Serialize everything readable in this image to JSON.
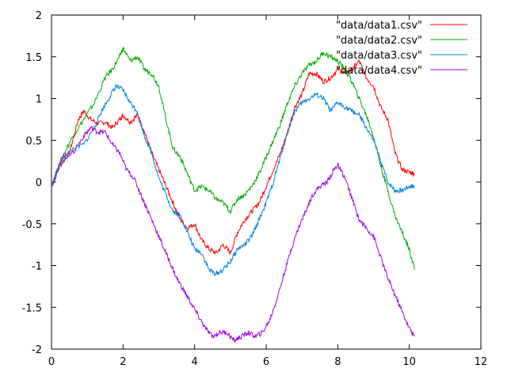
{
  "chart_data": {
    "type": "line",
    "title": "",
    "xlabel": "",
    "ylabel": "",
    "xlim": [
      0,
      12
    ],
    "ylim": [
      -2,
      2
    ],
    "x_ticks": [
      0,
      2,
      4,
      6,
      8,
      10,
      12
    ],
    "y_ticks": [
      -2,
      -1.5,
      -1,
      -0.5,
      0,
      0.5,
      1,
      1.5,
      2
    ],
    "x_tick_labels": [
      "0",
      "2",
      "4",
      "6",
      "8",
      "10",
      "12"
    ],
    "y_tick_labels": [
      "-2",
      "-1.5",
      "-1",
      "-0.5",
      "0",
      "0.5",
      "1",
      "1.5",
      "2"
    ],
    "grid": false,
    "legend_position": "top-right",
    "series": [
      {
        "name": "\"data/data1.csv\"",
        "color": "#ff0000",
        "x": [
          0,
          0.25,
          0.5,
          0.75,
          0.9,
          1.1,
          1.3,
          1.5,
          1.7,
          1.9,
          2.0,
          2.2,
          2.4,
          2.6,
          2.8,
          3.0,
          3.2,
          3.4,
          3.6,
          3.8,
          4.0,
          4.2,
          4.4,
          4.6,
          4.8,
          5.0,
          5.2,
          5.4,
          5.6,
          5.8,
          6.0,
          6.2,
          6.4,
          6.6,
          6.8,
          7.0,
          7.2,
          7.4,
          7.6,
          7.8,
          8.0,
          8.2,
          8.4,
          8.6,
          8.8,
          9.0,
          9.2,
          9.4,
          9.6,
          9.8,
          10.0,
          10.15
        ],
        "y": [
          -0.05,
          0.2,
          0.35,
          0.75,
          0.85,
          0.75,
          0.7,
          0.72,
          0.65,
          0.75,
          0.8,
          0.72,
          0.8,
          0.6,
          0.35,
          0.15,
          -0.05,
          -0.25,
          -0.45,
          -0.55,
          -0.5,
          -0.7,
          -0.8,
          -0.85,
          -0.75,
          -0.85,
          -0.6,
          -0.45,
          -0.35,
          -0.25,
          -0.05,
          0.15,
          0.35,
          0.6,
          0.9,
          1.05,
          1.3,
          1.3,
          1.2,
          1.25,
          1.35,
          1.3,
          1.35,
          1.45,
          1.25,
          1.15,
          0.9,
          0.75,
          0.35,
          0.15,
          0.12,
          0.1
        ]
      },
      {
        "name": "\"data/data2.csv\"",
        "color": "#00aa00",
        "x": [
          0,
          0.3,
          0.6,
          0.9,
          1.2,
          1.5,
          1.7,
          1.9,
          2.0,
          2.2,
          2.4,
          2.6,
          2.8,
          3.0,
          3.2,
          3.4,
          3.6,
          3.8,
          4.0,
          4.2,
          4.4,
          4.6,
          4.8,
          5.0,
          5.2,
          5.4,
          5.6,
          5.8,
          6.0,
          6.2,
          6.4,
          6.6,
          6.8,
          7.0,
          7.2,
          7.4,
          7.6,
          7.8,
          8.0,
          8.2,
          8.4,
          8.6,
          8.8,
          9.0,
          9.2,
          9.4,
          9.6,
          9.8,
          10.0,
          10.15
        ],
        "y": [
          -0.05,
          0.3,
          0.55,
          0.75,
          0.95,
          1.25,
          1.35,
          1.5,
          1.6,
          1.45,
          1.5,
          1.35,
          1.3,
          1.15,
          0.75,
          0.4,
          0.3,
          0.1,
          -0.1,
          -0.05,
          -0.1,
          -0.2,
          -0.25,
          -0.35,
          -0.2,
          -0.15,
          -0.05,
          0.1,
          0.3,
          0.5,
          0.7,
          0.95,
          1.15,
          1.3,
          1.4,
          1.45,
          1.55,
          1.5,
          1.45,
          1.35,
          1.2,
          1.0,
          0.8,
          0.55,
          0.2,
          -0.1,
          -0.4,
          -0.6,
          -0.8,
          -1.05
        ]
      },
      {
        "name": "\"data/data3.csv\"",
        "color": "#0080e0",
        "x": [
          0,
          0.3,
          0.6,
          0.9,
          1.2,
          1.4,
          1.6,
          1.8,
          2.0,
          2.2,
          2.4,
          2.6,
          2.8,
          3.0,
          3.2,
          3.4,
          3.6,
          3.8,
          4.0,
          4.2,
          4.4,
          4.6,
          4.8,
          5.0,
          5.2,
          5.4,
          5.6,
          5.8,
          6.0,
          6.2,
          6.4,
          6.6,
          6.8,
          7.0,
          7.2,
          7.4,
          7.6,
          7.8,
          8.0,
          8.2,
          8.4,
          8.6,
          8.8,
          9.0,
          9.2,
          9.4,
          9.6,
          9.8,
          10.0,
          10.15
        ],
        "y": [
          -0.05,
          0.25,
          0.4,
          0.45,
          0.65,
          0.85,
          1.0,
          1.15,
          1.1,
          0.95,
          0.85,
          0.55,
          0.35,
          0.05,
          -0.15,
          -0.35,
          -0.4,
          -0.6,
          -0.8,
          -0.85,
          -1.05,
          -1.1,
          -1.05,
          -0.95,
          -0.8,
          -0.75,
          -0.65,
          -0.45,
          -0.25,
          0.0,
          0.3,
          0.6,
          0.85,
          0.95,
          1.0,
          1.05,
          1.0,
          0.85,
          0.95,
          0.9,
          0.85,
          0.8,
          0.65,
          0.5,
          0.25,
          0.0,
          -0.1,
          -0.1,
          -0.05,
          -0.05
        ]
      },
      {
        "name": "\"data/data4.csv\"",
        "color": "#a000e0",
        "x": [
          0,
          0.3,
          0.6,
          0.9,
          1.1,
          1.3,
          1.5,
          1.7,
          1.9,
          2.1,
          2.3,
          2.5,
          2.7,
          2.9,
          3.1,
          3.3,
          3.5,
          3.7,
          3.9,
          4.1,
          4.3,
          4.5,
          4.7,
          4.9,
          5.1,
          5.3,
          5.5,
          5.7,
          5.9,
          6.1,
          6.3,
          6.5,
          6.7,
          6.9,
          7.1,
          7.3,
          7.5,
          7.7,
          7.9,
          8.0,
          8.2,
          8.4,
          8.6,
          8.8,
          9.0,
          9.2,
          9.4,
          9.6,
          9.8,
          10.0,
          10.15
        ],
        "y": [
          -0.05,
          0.3,
          0.35,
          0.55,
          0.65,
          0.6,
          0.6,
          0.45,
          0.35,
          0.15,
          0.05,
          -0.15,
          -0.35,
          -0.55,
          -0.75,
          -0.95,
          -1.15,
          -1.3,
          -1.45,
          -1.6,
          -1.75,
          -1.85,
          -1.8,
          -1.8,
          -1.9,
          -1.85,
          -1.8,
          -1.85,
          -1.8,
          -1.65,
          -1.4,
          -1.1,
          -0.8,
          -0.55,
          -0.35,
          -0.15,
          -0.05,
          0.0,
          0.15,
          0.2,
          0.05,
          -0.2,
          -0.45,
          -0.55,
          -0.65,
          -0.9,
          -1.15,
          -1.35,
          -1.55,
          -1.75,
          -1.85
        ]
      }
    ]
  }
}
